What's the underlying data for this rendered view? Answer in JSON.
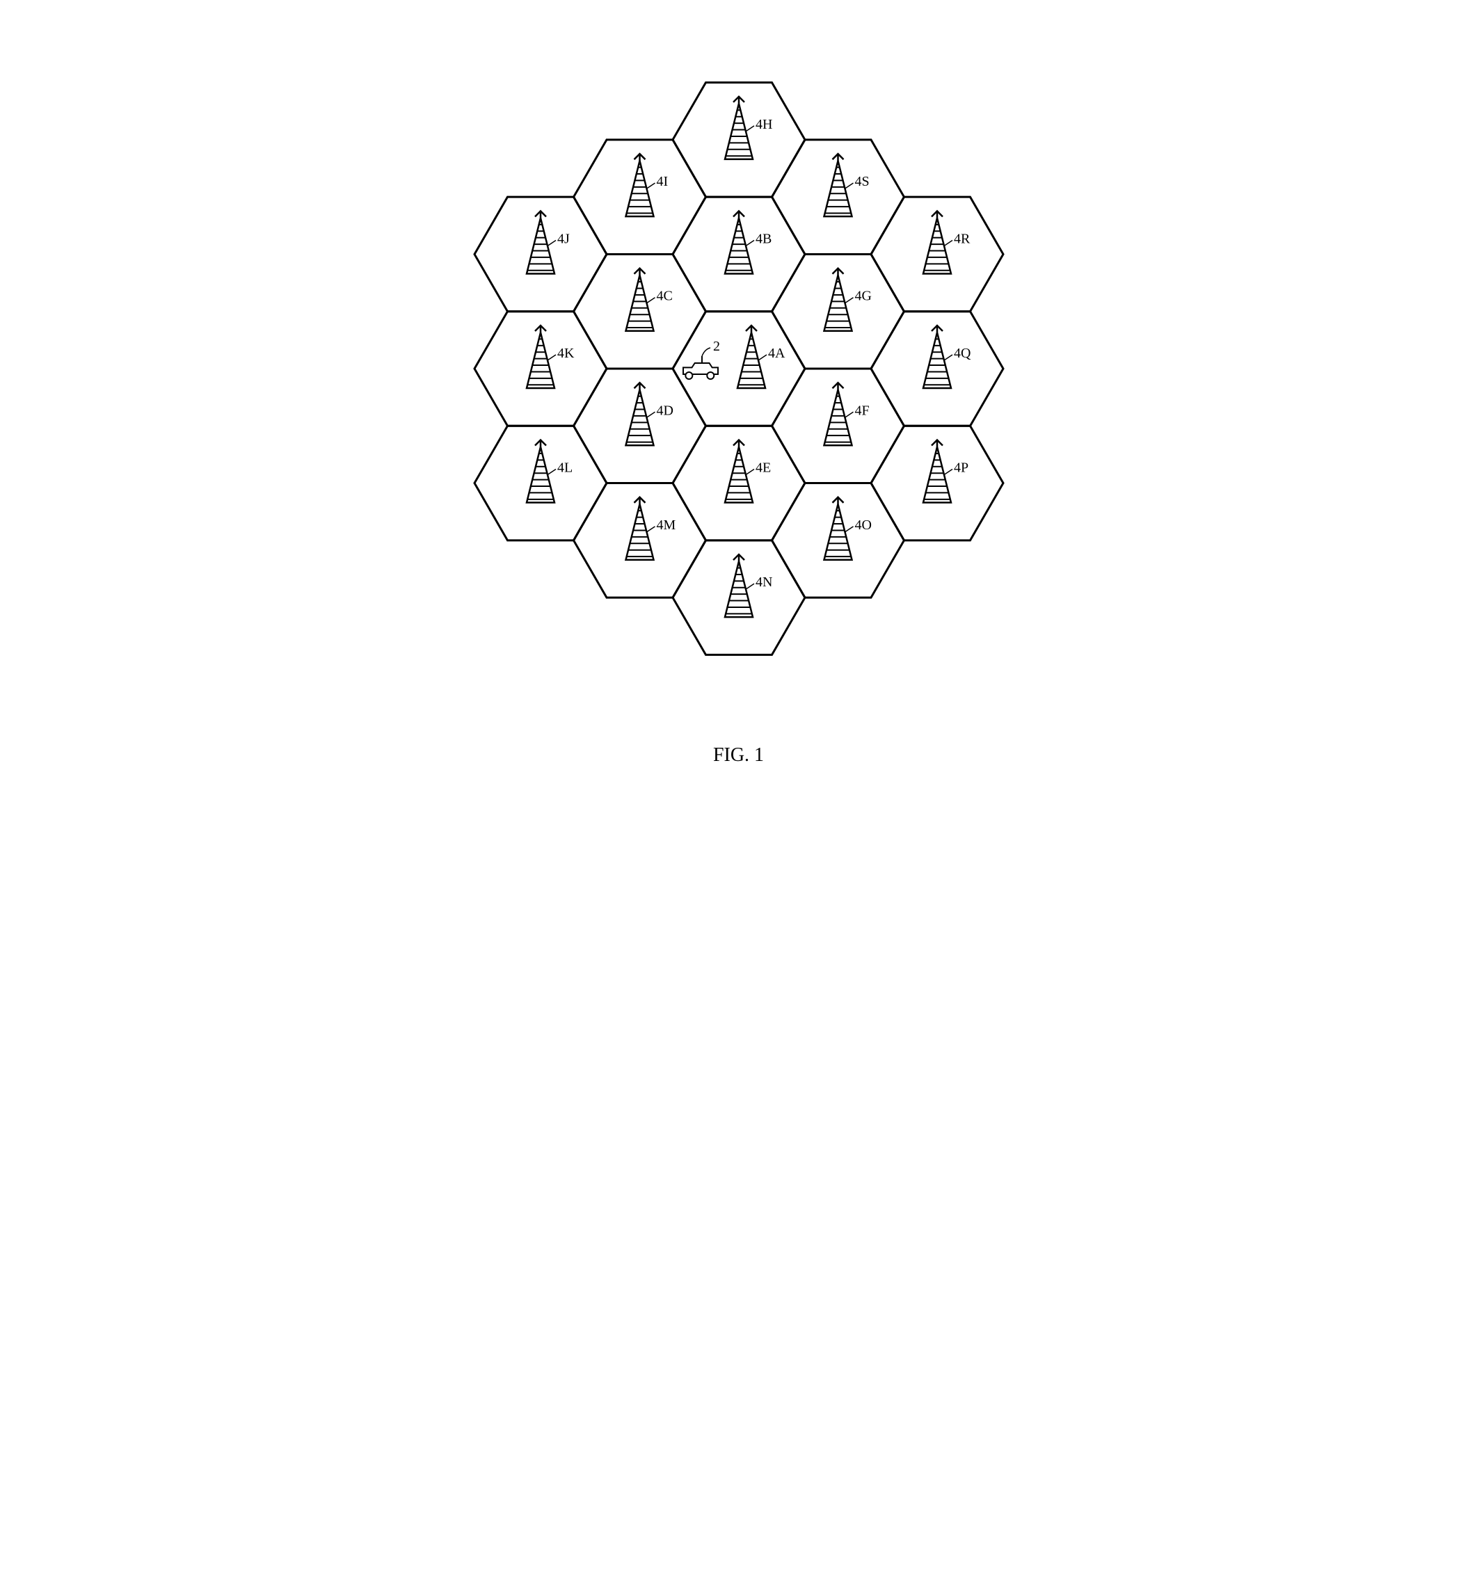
{
  "diagram": {
    "type": "network",
    "caption": "FIG. 1",
    "caption_fontsize": 28,
    "background_color": "#ffffff",
    "stroke_color": "#000000",
    "hex_stroke_width": 3,
    "hex_radius": 95,
    "tower_height": 80,
    "tower_width": 40,
    "label_fontsize": 20,
    "car_label": "2",
    "cells": [
      {
        "id": "4A",
        "row": 0,
        "col": 0,
        "has_car": true
      },
      {
        "id": "4B",
        "row": -1,
        "col": 0
      },
      {
        "id": "4C",
        "row": -1,
        "col": -1
      },
      {
        "id": "4D",
        "row": 1,
        "col": -1
      },
      {
        "id": "4E",
        "row": 1,
        "col": 0
      },
      {
        "id": "4F",
        "row": 1,
        "col": 1
      },
      {
        "id": "4G",
        "row": -1,
        "col": 1
      },
      {
        "id": "4H",
        "row": -2,
        "col": 0
      },
      {
        "id": "4I",
        "row": -2,
        "col": -1
      },
      {
        "id": "4J",
        "row": -2,
        "col": -2
      },
      {
        "id": "4K",
        "row": 0,
        "col": -2
      },
      {
        "id": "4L",
        "row": 2,
        "col": -2
      },
      {
        "id": "4M",
        "row": 2,
        "col": -1
      },
      {
        "id": "4N",
        "row": 2,
        "col": 0
      },
      {
        "id": "4O",
        "row": 2,
        "col": 1
      },
      {
        "id": "4P",
        "row": 2,
        "col": 2
      },
      {
        "id": "4Q",
        "row": 0,
        "col": 2
      },
      {
        "id": "4R",
        "row": -2,
        "col": 2
      },
      {
        "id": "4S",
        "row": -2,
        "col": 1
      }
    ]
  }
}
